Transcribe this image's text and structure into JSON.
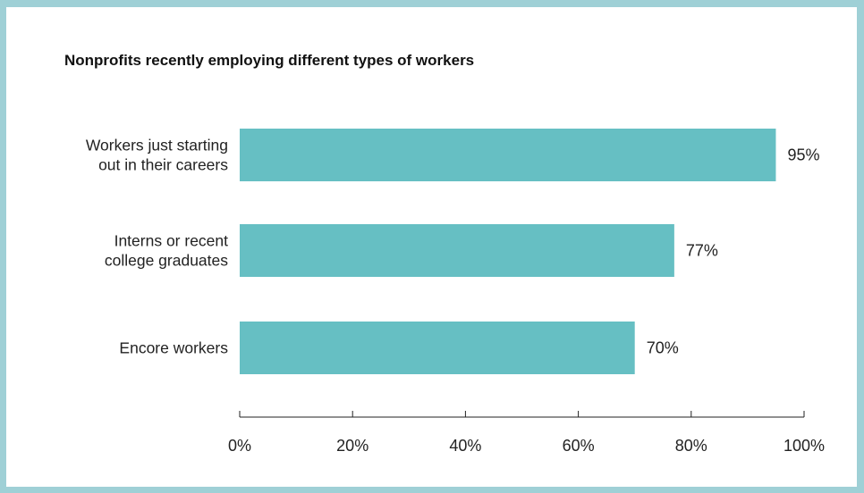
{
  "colors": {
    "frame": "#9fd0d6",
    "bar": "#66bfc3",
    "axis": "#222222",
    "text": "#222222"
  },
  "chart_data": {
    "type": "bar",
    "orientation": "horizontal",
    "title": "Nonprofits recently employing different types of workers",
    "categories": [
      [
        "Workers just starting",
        "out in their careers"
      ],
      [
        "Interns or recent",
        "college graduates"
      ],
      [
        "Encore workers"
      ]
    ],
    "values": [
      95,
      77,
      70
    ],
    "value_labels": [
      "95%",
      "77%",
      "70%"
    ],
    "xlim": [
      0,
      100
    ],
    "xticks": [
      0,
      20,
      40,
      60,
      80,
      100
    ],
    "xtick_labels": [
      "0%",
      "20%",
      "40%",
      "60%",
      "80%",
      "100%"
    ],
    "grid": false,
    "legend": "none"
  }
}
